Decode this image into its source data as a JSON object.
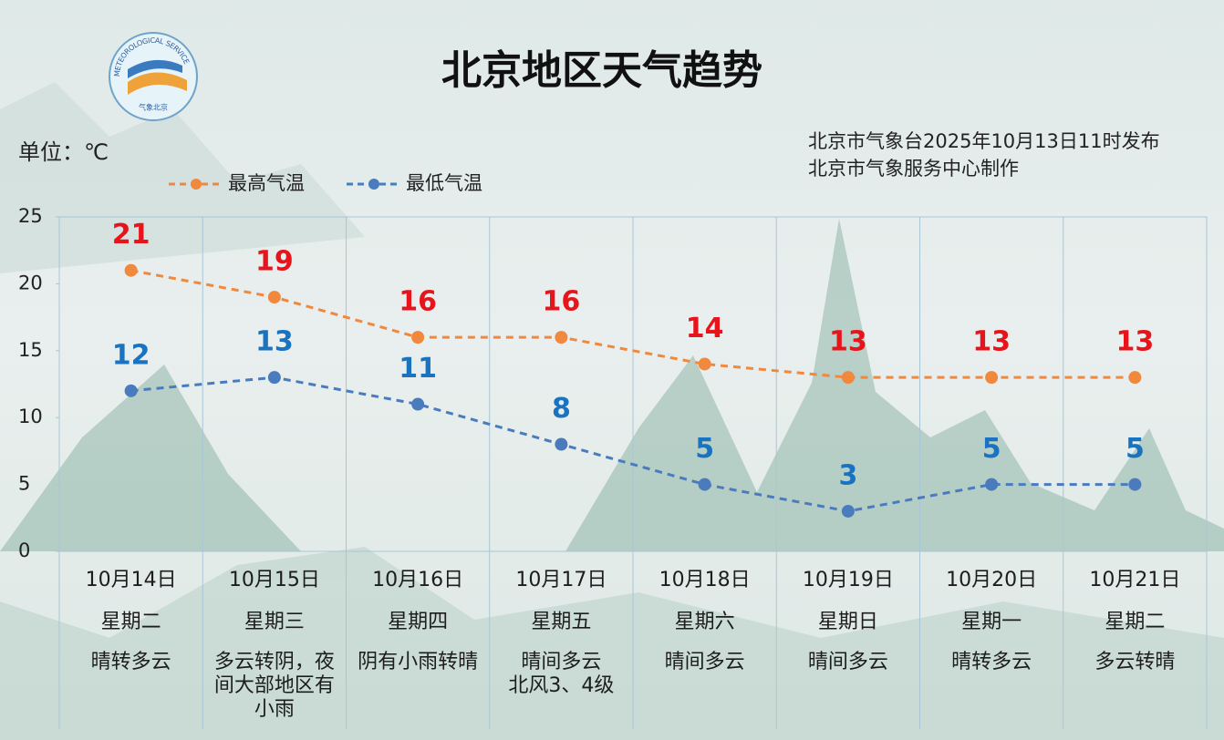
{
  "chart_data": {
    "type": "line",
    "title": "北京地区天气趋势",
    "unit_label": "单位：℃",
    "issuer": [
      "北京市气象台2025年10月13日11时发布",
      "北京市气象服务中心制作"
    ],
    "logo_text": [
      "METEOROLOGICAL SERVICE",
      "气象北京"
    ],
    "categories": [
      "10月14日",
      "10月15日",
      "10月16日",
      "10月17日",
      "10月18日",
      "10月19日",
      "10月20日",
      "10月21日"
    ],
    "weekdays": [
      "星期二",
      "星期三",
      "星期四",
      "星期五",
      "星期六",
      "星期日",
      "星期一",
      "星期二"
    ],
    "weather": [
      "晴转多云",
      "多云转阴，夜间大部地区有小雨",
      "阴有小雨转晴",
      "晴间多云\n北风3、4级",
      "晴间多云",
      "晴间多云",
      "晴转多云",
      "多云转晴"
    ],
    "series": [
      {
        "name": "最高气温",
        "color": "#f0883e",
        "label_color": "#e8141c",
        "values": [
          21,
          19,
          16,
          16,
          14,
          13,
          13,
          13
        ]
      },
      {
        "name": "最低气温",
        "color": "#4a7bbd",
        "label_color": "#1a73c0",
        "values": [
          12,
          13,
          11,
          8,
          5,
          3,
          5,
          5
        ]
      }
    ],
    "ylim": [
      0,
      25
    ],
    "yticks": [
      0,
      5,
      10,
      15,
      20,
      25
    ],
    "grid": false,
    "legend": "top"
  }
}
